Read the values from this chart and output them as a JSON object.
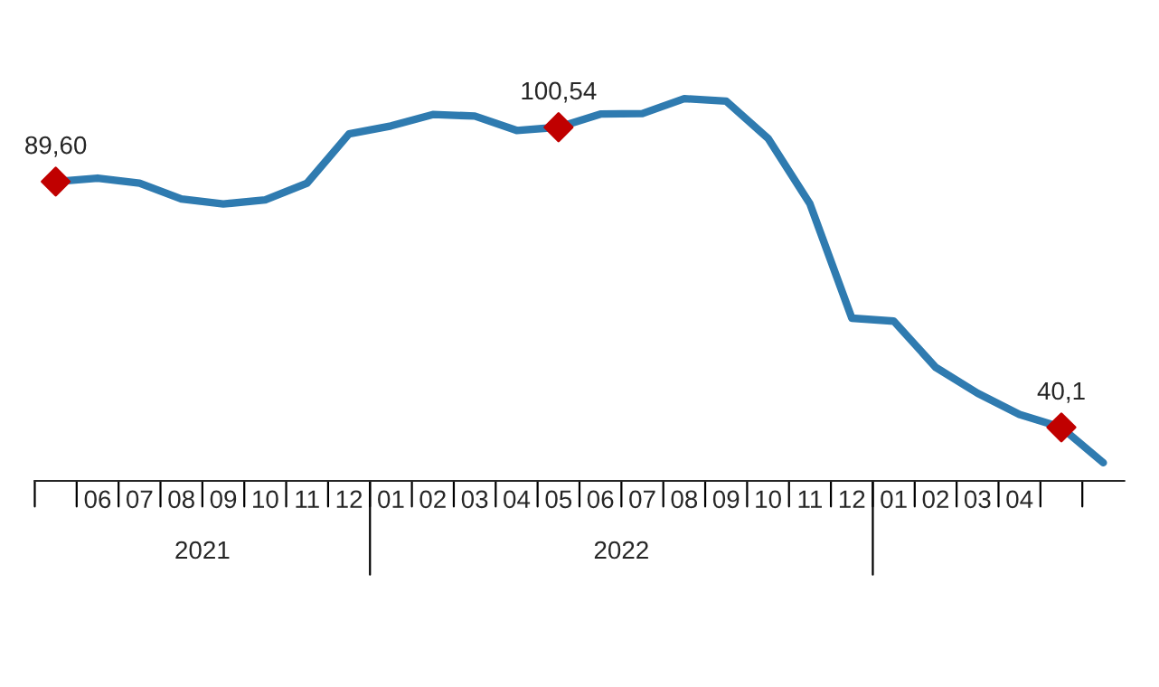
{
  "chart_data": {
    "type": "line",
    "categories": [
      null,
      "06",
      "07",
      "08",
      "09",
      "10",
      "11",
      "12",
      "01",
      "02",
      "03",
      "04",
      "05",
      "06",
      "07",
      "08",
      "09",
      "10",
      "11",
      "12",
      "01",
      "02",
      "03",
      "04",
      null,
      null
    ],
    "series": [
      {
        "color": "#2f7bb0",
        "values": [
          89.6,
          90.3,
          89.3,
          86.1,
          85.1,
          85.9,
          89.3,
          99.2,
          100.8,
          103.1,
          102.8,
          99.9,
          100.54,
          103.2,
          103.3,
          106.3,
          105.8,
          98.3,
          85.1,
          62.1,
          61.5,
          52.2,
          47.0,
          42.7,
          40.1,
          33.0
        ],
        "marker": "none",
        "line_style": "solid"
      },
      {
        "type": "scatter",
        "color": "#c00000",
        "marker": "diamond",
        "values": [
          89.6,
          null,
          null,
          null,
          null,
          null,
          null,
          null,
          null,
          null,
          null,
          null,
          100.54,
          null,
          null,
          null,
          null,
          null,
          null,
          null,
          null,
          null,
          null,
          null,
          40.1,
          null
        ],
        "value_labels": [
          "89,60",
          null,
          null,
          null,
          null,
          null,
          null,
          null,
          null,
          null,
          null,
          null,
          "100,54",
          null,
          null,
          null,
          null,
          null,
          null,
          null,
          null,
          null,
          null,
          null,
          "40,1",
          null
        ]
      }
    ],
    "annotations": [
      "2021",
      "2022"
    ],
    "grid": false,
    "legend": false
  }
}
